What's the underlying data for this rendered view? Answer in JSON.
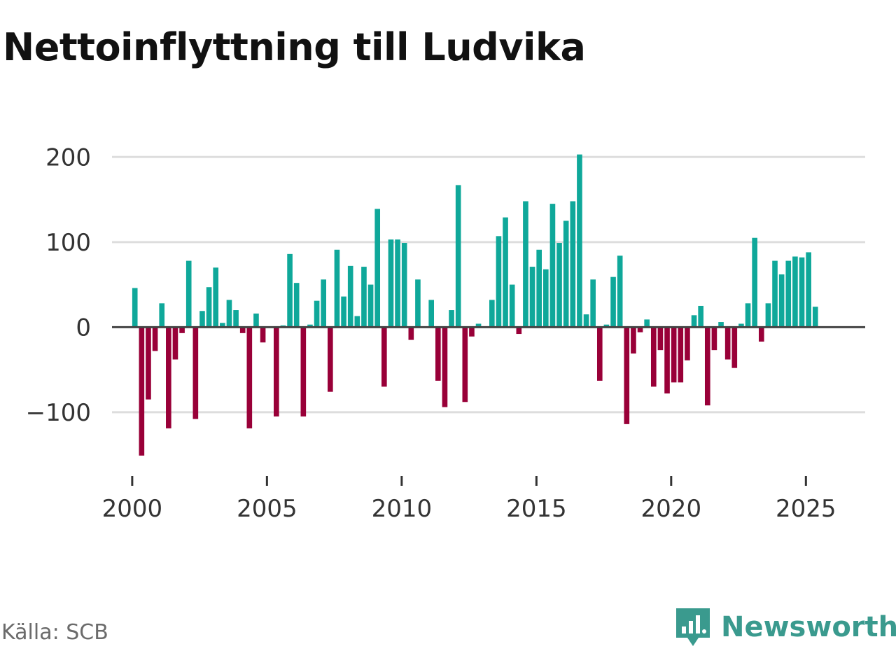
{
  "title": "Nettoinflyttning till Ludvika",
  "source": "Källa: SCB",
  "brand": {
    "name": "Newsworthy",
    "logo_icon": "newsworthy-logo-icon"
  },
  "colors": {
    "positive": "#0fa89a",
    "negative": "#990038",
    "grid": "#dddddd",
    "zero_line": "#444444",
    "brand": "#3a9a8e"
  },
  "chart_data": {
    "type": "bar",
    "title": "Nettoinflyttning till Ludvika",
    "xlabel": "",
    "ylabel": "",
    "x_start": 2000.1,
    "x_step": 0.25,
    "xlim": [
      1999.25,
      2027.2
    ],
    "ylim": [
      -175,
      220
    ],
    "y_ticks": [
      -100,
      0,
      100,
      200
    ],
    "y_tick_labels": [
      "−100",
      "0",
      "100",
      "200"
    ],
    "x_ticks": [
      2000,
      2005,
      2010,
      2015,
      2020,
      2025
    ],
    "x_tick_labels": [
      "2000",
      "2005",
      "2010",
      "2015",
      "2020",
      "2025"
    ],
    "grid": true,
    "values": [
      46,
      -151,
      -85,
      -28,
      28,
      -119,
      -38,
      -7,
      78,
      -108,
      19,
      47,
      70,
      5,
      32,
      20,
      -7,
      -119,
      16,
      -18,
      0,
      -105,
      2,
      86,
      52,
      -105,
      3,
      31,
      56,
      -76,
      91,
      36,
      72,
      13,
      71,
      50,
      139,
      -70,
      103,
      103,
      99,
      -15,
      56,
      0,
      32,
      -63,
      -94,
      20,
      167,
      -88,
      -11,
      4,
      0,
      32,
      107,
      129,
      50,
      -8,
      148,
      71,
      91,
      68,
      145,
      99,
      125,
      148,
      203,
      15,
      56,
      -63,
      3,
      59,
      84,
      -114,
      -31,
      -6,
      9,
      -70,
      -27,
      -78,
      -65,
      -65,
      -39,
      14,
      25,
      -92,
      -27,
      6,
      -38,
      -48,
      4,
      28,
      105,
      -17,
      28,
      78,
      62,
      78,
      83,
      82,
      88,
      24
    ]
  }
}
